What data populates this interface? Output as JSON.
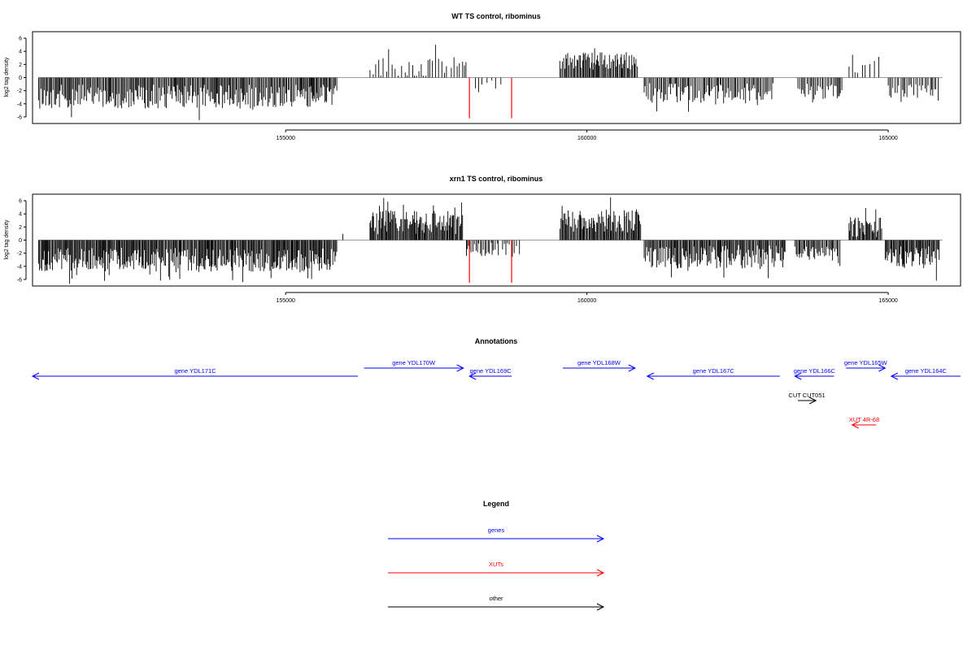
{
  "chart_data": [
    {
      "type": "bar",
      "title": "WT TS control, ribominus",
      "ylabel": "log2 tag density",
      "xlim": [
        150800,
        166200
      ],
      "ylim": [
        -7,
        7
      ],
      "yticks": [
        6,
        4,
        2,
        0,
        -2,
        -4,
        -6
      ],
      "xticks": [
        155000,
        160000,
        165000
      ],
      "grid": false,
      "series": [
        {
          "color": "#000000",
          "segments": [
            {
              "from": 150900,
              "to": 155850,
              "sign": -1,
              "base": 2.9,
              "spread": 2.6,
              "step": 18
            },
            {
              "from": 156400,
              "to": 157700,
              "sign": 1,
              "base": 1.5,
              "spread": 2.4,
              "step": 45
            },
            {
              "from": 157750,
              "to": 158000,
              "sign": 1,
              "base": 2.0,
              "spread": 1.0,
              "step": 40
            },
            {
              "from": 158150,
              "to": 158600,
              "sign": -1,
              "base": 1.0,
              "spread": 1.0,
              "step": 80
            },
            {
              "from": 159550,
              "to": 160850,
              "sign": 1,
              "base": 2.6,
              "spread": 2.0,
              "step": 18
            },
            {
              "from": 160950,
              "to": 163100,
              "sign": -1,
              "base": 2.4,
              "spread": 2.2,
              "step": 22
            },
            {
              "from": 163500,
              "to": 164250,
              "sign": -1,
              "base": 2.2,
              "spread": 1.8,
              "step": 25
            },
            {
              "from": 164350,
              "to": 164850,
              "sign": 1,
              "base": 1.5,
              "spread": 1.5,
              "step": 60
            },
            {
              "from": 165000,
              "to": 165850,
              "sign": -1,
              "base": 2.0,
              "spread": 1.5,
              "step": 30
            }
          ]
        },
        {
          "color": "#ff0000",
          "bars": [
            {
              "x": 158050,
              "y": -6.2
            },
            {
              "x": 158750,
              "y": -6.2
            }
          ]
        }
      ]
    },
    {
      "type": "bar",
      "title": "xrn1 TS control, ribominus",
      "ylabel": "log2 tag density",
      "xlim": [
        150800,
        166200
      ],
      "ylim": [
        -7,
        7
      ],
      "yticks": [
        6,
        4,
        2,
        0,
        -2,
        -4,
        -6
      ],
      "xticks": [
        155000,
        160000,
        165000
      ],
      "grid": false,
      "series": [
        {
          "color": "#000000",
          "segments": [
            {
              "from": 150900,
              "to": 155850,
              "sign": -1,
              "base": 3.0,
              "spread": 2.6,
              "step": 15
            },
            {
              "from": 155950,
              "to": 156000,
              "sign": 1,
              "base": 1.0,
              "spread": 0.2,
              "step": 60
            },
            {
              "from": 156400,
              "to": 157950,
              "sign": 1,
              "base": 2.7,
              "spread": 2.6,
              "step": 15
            },
            {
              "from": 158000,
              "to": 158550,
              "sign": -1,
              "base": 1.5,
              "spread": 1.5,
              "step": 25
            },
            {
              "from": 158600,
              "to": 158900,
              "sign": -1,
              "base": 1.5,
              "spread": 1.5,
              "step": 40
            },
            {
              "from": 159550,
              "to": 160900,
              "sign": 1,
              "base": 3.0,
              "spread": 2.6,
              "step": 15
            },
            {
              "from": 160950,
              "to": 163300,
              "sign": -1,
              "base": 2.5,
              "spread": 2.6,
              "step": 16
            },
            {
              "from": 163450,
              "to": 164200,
              "sign": -1,
              "base": 2.0,
              "spread": 1.6,
              "step": 20
            },
            {
              "from": 164350,
              "to": 164900,
              "sign": 1,
              "base": 2.0,
              "spread": 2.2,
              "step": 15
            },
            {
              "from": 164950,
              "to": 165850,
              "sign": -1,
              "base": 2.6,
              "spread": 2.4,
              "step": 15
            }
          ]
        },
        {
          "color": "#ff0000",
          "bars": [
            {
              "x": 158050,
              "y": -6.5
            },
            {
              "x": 158750,
              "y": -6.5
            }
          ]
        }
      ]
    }
  ],
  "annotations": {
    "title": "Annotations",
    "features": [
      {
        "label": "gene YDL171C",
        "kind": "gene",
        "strand": "-",
        "start": 150800,
        "end": 156200,
        "color": "#0000ff",
        "row": 2
      },
      {
        "label": "gene YDL170W",
        "kind": "gene",
        "strand": "+",
        "start": 156300,
        "end": 157950,
        "color": "#0000ff",
        "row": 1
      },
      {
        "label": "gene YDL169C",
        "kind": "gene",
        "strand": "-",
        "start": 158050,
        "end": 158750,
        "color": "#0000ff",
        "row": 2
      },
      {
        "label": "gene YDL168W",
        "kind": "gene",
        "strand": "+",
        "start": 159600,
        "end": 160800,
        "color": "#0000ff",
        "row": 1
      },
      {
        "label": "gene YDL167C",
        "kind": "gene",
        "strand": "-",
        "start": 161000,
        "end": 163200,
        "color": "#0000ff",
        "row": 2
      },
      {
        "label": "gene YDL166C",
        "kind": "gene",
        "strand": "-",
        "start": 163450,
        "end": 164100,
        "color": "#0000ff",
        "row": 2
      },
      {
        "label": "gene YDL165W",
        "kind": "gene",
        "strand": "+",
        "start": 164300,
        "end": 164950,
        "color": "#0000ff",
        "row": 1
      },
      {
        "label": "gene YDL164C",
        "kind": "gene",
        "strand": "-",
        "start": 165050,
        "end": 166200,
        "color": "#0000ff",
        "row": 2
      },
      {
        "label": "CUT CUT051",
        "kind": "other",
        "strand": "+",
        "start": 163500,
        "end": 163800,
        "color": "#000000",
        "row": 5
      },
      {
        "label": "XUT 4R-68",
        "kind": "XUT",
        "strand": "-",
        "start": 164400,
        "end": 164800,
        "color": "#ff0000",
        "row": 8
      }
    ]
  },
  "legend": {
    "title": "Legend",
    "entries": [
      {
        "label": "genes",
        "color": "#0000ff"
      },
      {
        "label": "XUTs",
        "color": "#ff0000"
      },
      {
        "label": "other",
        "color": "#000000"
      }
    ]
  }
}
